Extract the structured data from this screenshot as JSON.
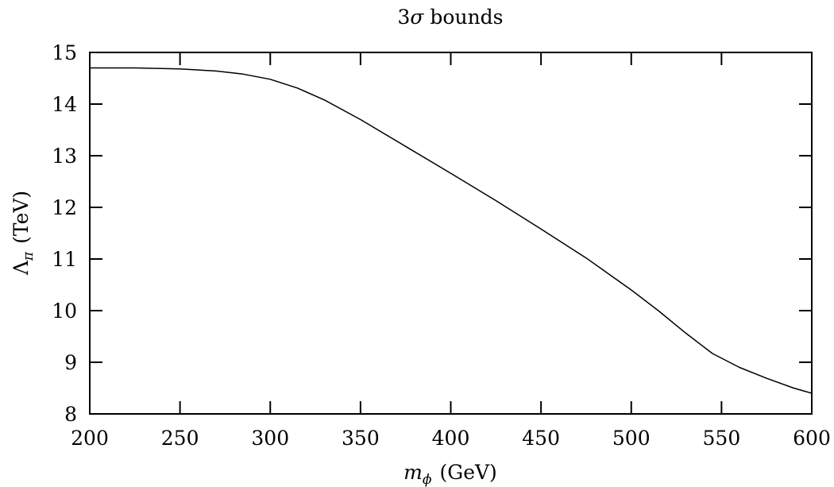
{
  "chart_data": {
    "type": "line",
    "title_prefix": "3",
    "title_symbol": "σ",
    "title_suffix": " bounds",
    "xlabel_symbol": "m",
    "xlabel_sub": "ϕ",
    "xlabel_unit": "(GeV)",
    "ylabel_symbol": "Λ",
    "ylabel_sub": "π",
    "ylabel_unit": "(TeV)",
    "xlim": [
      200,
      600
    ],
    "ylim": [
      8,
      15
    ],
    "xticks": [
      200,
      250,
      300,
      350,
      400,
      450,
      500,
      550,
      600
    ],
    "yticks": [
      8,
      9,
      10,
      11,
      12,
      13,
      14,
      15
    ],
    "grid": false,
    "series": [
      {
        "color": "#000000",
        "x": [
          200,
          225,
          250,
          270,
          285,
          300,
          315,
          330,
          350,
          375,
          400,
          425,
          450,
          475,
          500,
          515,
          530,
          545,
          560,
          575,
          590,
          600
        ],
        "y": [
          14.7,
          14.7,
          14.68,
          14.64,
          14.58,
          14.48,
          14.31,
          14.08,
          13.7,
          13.18,
          12.66,
          12.13,
          11.58,
          11.02,
          10.4,
          10.0,
          9.57,
          9.17,
          8.9,
          8.69,
          8.5,
          8.4
        ]
      }
    ]
  }
}
